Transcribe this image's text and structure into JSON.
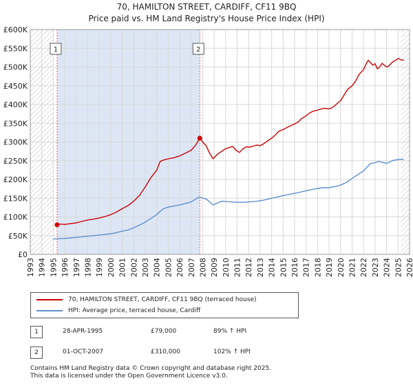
{
  "title_line1": "70, HAMILTON STREET, CARDIFF, CF11 9BQ",
  "title_line2": "Price paid vs. HM Land Registry's House Price Index (HPI)",
  "chart_data": {
    "type": "line",
    "title": "70, HAMILTON STREET, CARDIFF, CF11 9BQ — Price paid vs. HM Land Registry's House Price Index (HPI)",
    "xlabel": "",
    "ylabel": "",
    "xlim": [
      1993,
      2026
    ],
    "ylim": [
      0,
      600000
    ],
    "x_ticks": [
      1993,
      1994,
      1995,
      1996,
      1997,
      1998,
      1999,
      2000,
      2001,
      2002,
      2003,
      2004,
      2005,
      2006,
      2007,
      2008,
      2009,
      2010,
      2011,
      2012,
      2013,
      2014,
      2015,
      2016,
      2017,
      2018,
      2019,
      2020,
      2021,
      2022,
      2023,
      2024,
      2025,
      2026
    ],
    "y_ticks": [
      {
        "value": 0,
        "label": "£0"
      },
      {
        "value": 50000,
        "label": "£50K"
      },
      {
        "value": 100000,
        "label": "£100K"
      },
      {
        "value": 150000,
        "label": "£150K"
      },
      {
        "value": 200000,
        "label": "£200K"
      },
      {
        "value": 250000,
        "label": "£250K"
      },
      {
        "value": 300000,
        "label": "£300K"
      },
      {
        "value": 350000,
        "label": "£350K"
      },
      {
        "value": 400000,
        "label": "£400K"
      },
      {
        "value": 450000,
        "label": "£450K"
      },
      {
        "value": 500000,
        "label": "£500K"
      },
      {
        "value": 550000,
        "label": "£550K"
      },
      {
        "value": 600000,
        "label": "£600K"
      }
    ],
    "grid": true,
    "hatched_ranges": [
      [
        1993,
        1995.0
      ],
      [
        2025.25,
        2026
      ]
    ],
    "shaded_range": [
      1995.33,
      2007.75
    ],
    "series": [
      {
        "name": "70, HAMILTON STREET, CARDIFF, CF11 9BQ (terraced house)",
        "color": "#cc0000",
        "x": [
          1995.33,
          1995.6,
          1996,
          1996.5,
          1997,
          1997.5,
          1998,
          1998.5,
          1999,
          1999.5,
          2000,
          2000.5,
          2001,
          2001.5,
          2002,
          2002.5,
          2003,
          2003.5,
          2004,
          2004.3,
          2004.6,
          2005,
          2005.5,
          2006,
          2006.5,
          2007,
          2007.4,
          2007.75,
          2008,
          2008.3,
          2008.6,
          2008.9,
          2009.2,
          2009.5,
          2009.8,
          2010,
          2010.3,
          2010.6,
          2010.9,
          2011.2,
          2011.5,
          2011.8,
          2012.1,
          2012.4,
          2012.7,
          2013,
          2013.3,
          2013.6,
          2014,
          2014.3,
          2014.6,
          2015,
          2015.3,
          2015.6,
          2016,
          2016.3,
          2016.6,
          2017,
          2017.3,
          2017.6,
          2018,
          2018.3,
          2018.6,
          2019,
          2019.3,
          2019.6,
          2020,
          2020.3,
          2020.6,
          2021,
          2021.3,
          2021.6,
          2022,
          2022.2,
          2022.4,
          2022.6,
          2022.8,
          2023,
          2023.2,
          2023.4,
          2023.6,
          2023.8,
          2024,
          2024.2,
          2024.4,
          2024.6,
          2024.8,
          2025,
          2025.2,
          2025.5
        ],
        "values": [
          79000,
          81000,
          80000,
          82000,
          84000,
          88000,
          92000,
          94000,
          97000,
          101000,
          106000,
          113000,
          122000,
          130000,
          142000,
          157000,
          180000,
          205000,
          225000,
          248000,
          252000,
          255000,
          258000,
          263000,
          270000,
          278000,
          292000,
          310000,
          300000,
          290000,
          270000,
          255000,
          265000,
          272000,
          278000,
          282000,
          285000,
          288000,
          278000,
          272000,
          282000,
          287000,
          286000,
          289000,
          292000,
          290000,
          295000,
          302000,
          310000,
          318000,
          328000,
          333000,
          338000,
          343000,
          348000,
          353000,
          362000,
          370000,
          377000,
          382000,
          385000,
          388000,
          390000,
          388000,
          392000,
          400000,
          410000,
          425000,
          440000,
          450000,
          462000,
          480000,
          493000,
          507000,
          518000,
          512000,
          505000,
          509000,
          495000,
          500000,
          510000,
          505000,
          500000,
          503000,
          510000,
          515000,
          518000,
          523000,
          520000,
          518000
        ],
        "markers": [
          [
            1995.33,
            79000
          ],
          [
            2007.75,
            310000
          ]
        ]
      },
      {
        "name": "HPI: Average price, terraced house, Cardiff",
        "color": "#5b8fcf",
        "x": [
          1995.0,
          1995.5,
          1996,
          1996.5,
          1997,
          1997.5,
          1998,
          1998.5,
          1999,
          1999.5,
          2000,
          2000.5,
          2001,
          2001.5,
          2002,
          2002.5,
          2003,
          2003.5,
          2004,
          2004.3,
          2004.6,
          2005,
          2005.5,
          2006,
          2006.5,
          2007,
          2007.4,
          2007.75,
          2008,
          2008.3,
          2008.6,
          2008.9,
          2009.2,
          2009.5,
          2009.8,
          2010,
          2010.5,
          2011,
          2011.5,
          2012,
          2012.5,
          2013,
          2013.5,
          2014,
          2014.5,
          2015,
          2015.5,
          2016,
          2016.5,
          2017,
          2017.5,
          2018,
          2018.5,
          2019,
          2019.5,
          2020,
          2020.5,
          2021,
          2021.5,
          2022,
          2022.3,
          2022.6,
          2023,
          2023.3,
          2023.6,
          2024,
          2024.3,
          2024.6,
          2025,
          2025.3,
          2025.5
        ],
        "values": [
          41000,
          42000,
          42500,
          44000,
          45500,
          47000,
          48500,
          50000,
          51500,
          53000,
          55000,
          58000,
          62000,
          65000,
          71000,
          78000,
          86000,
          96000,
          106000,
          115000,
          122000,
          126000,
          129000,
          132000,
          136000,
          140000,
          148000,
          153000,
          150000,
          148000,
          140000,
          132000,
          136000,
          140000,
          142000,
          141000,
          140000,
          139000,
          139000,
          140000,
          141000,
          143000,
          146000,
          150000,
          153000,
          157000,
          160000,
          163000,
          166000,
          170000,
          173000,
          176000,
          178000,
          178000,
          181000,
          185000,
          192000,
          203000,
          213000,
          223000,
          233000,
          242000,
          245000,
          248000,
          246000,
          243000,
          247000,
          251000,
          253000,
          254000,
          253000
        ]
      }
    ],
    "annotations": [
      {
        "label": "1",
        "x": 1995.33
      },
      {
        "label": "2",
        "x": 2007.75
      }
    ]
  },
  "legend": {
    "items": [
      {
        "label": "70, HAMILTON STREET, CARDIFF, CF11 9BQ (terraced house)",
        "color": "#cc0000"
      },
      {
        "label": "HPI: Average price, terraced house, Cardiff",
        "color": "#5b8fcf"
      }
    ]
  },
  "sales": [
    {
      "num": "1",
      "date": "28-APR-1995",
      "price": "£79,000",
      "hpi": "89% ↑ HPI"
    },
    {
      "num": "2",
      "date": "01-OCT-2007",
      "price": "£310,000",
      "hpi": "102% ↑ HPI"
    }
  ],
  "footer": {
    "line1": "Contains HM Land Registry data © Crown copyright and database right 2025.",
    "line2": "This data is licensed under the Open Government Licence v3.0."
  }
}
